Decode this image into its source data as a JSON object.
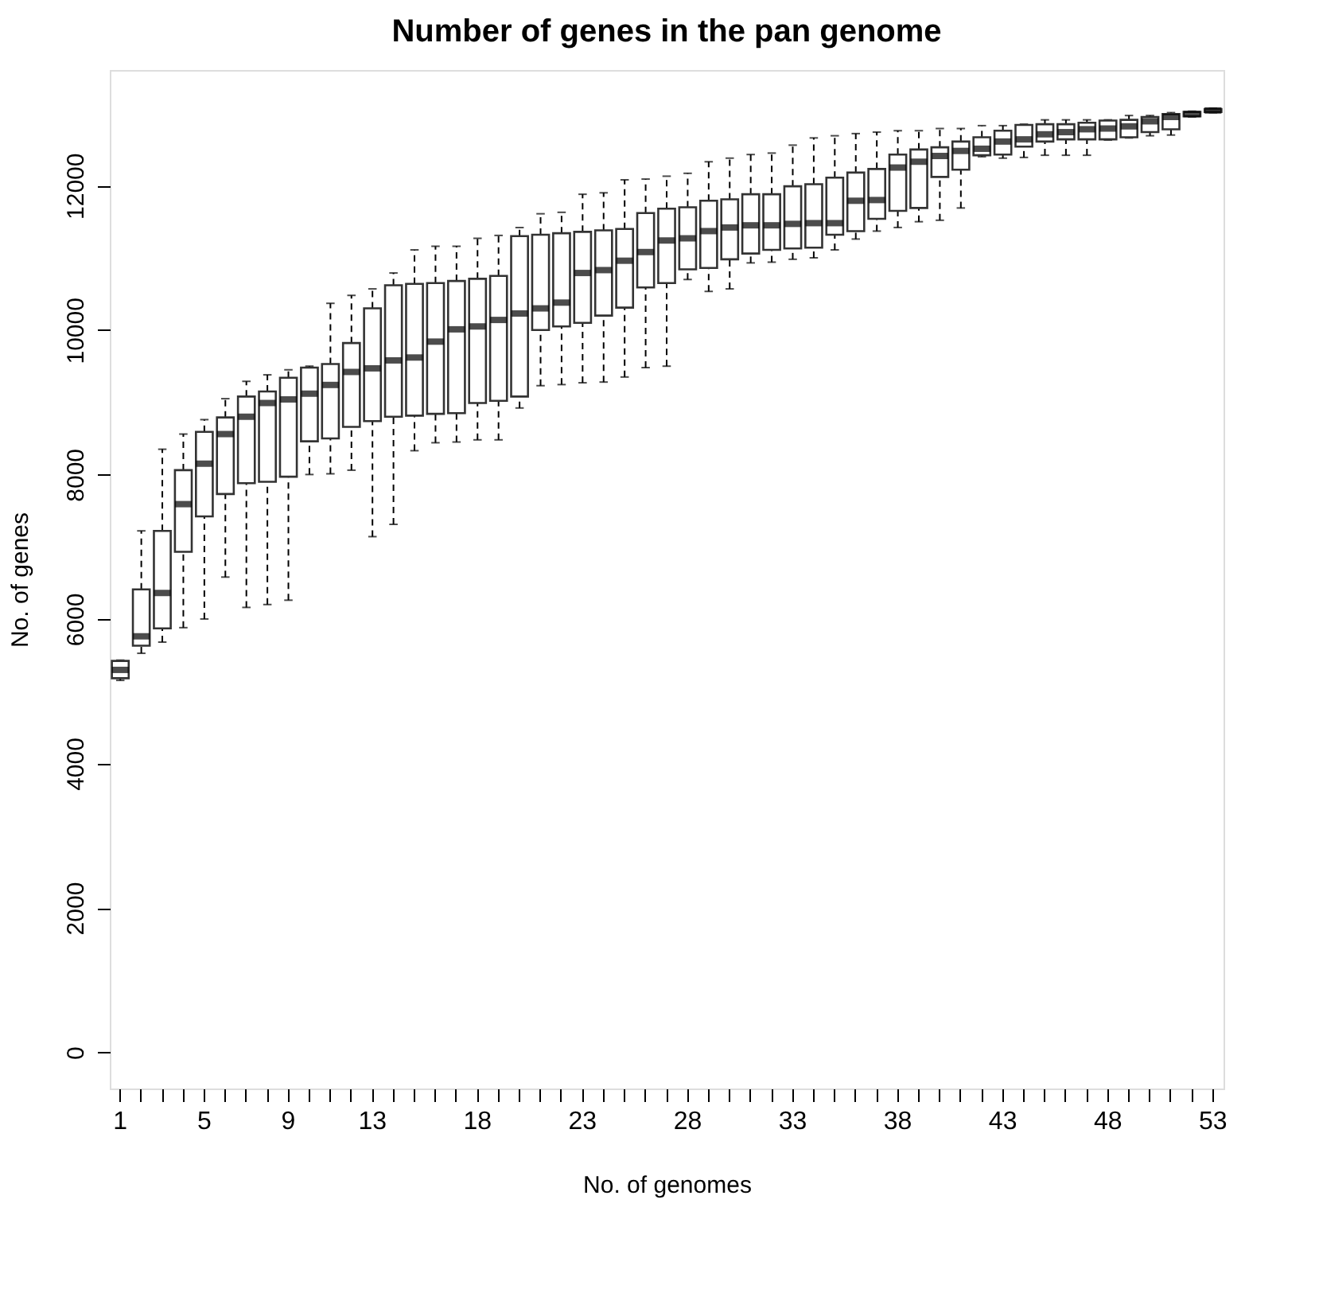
{
  "chart_data": {
    "type": "box",
    "title": "Number of genes in the pan genome",
    "xlabel": "No. of genomes",
    "ylabel": "No. of genes",
    "categories": [
      "1",
      null,
      null,
      null,
      "5",
      null,
      null,
      null,
      "9",
      null,
      null,
      null,
      "13",
      null,
      null,
      null,
      null,
      "18",
      null,
      null,
      null,
      null,
      "23",
      null,
      null,
      null,
      null,
      "28",
      null,
      null,
      null,
      null,
      "33",
      null,
      null,
      null,
      null,
      "38",
      null,
      null,
      null,
      null,
      "43",
      null,
      null,
      null,
      null,
      "48",
      null,
      null,
      null,
      null,
      "53"
    ],
    "boxes": [
      {
        "low": 5150,
        "q1": 5180,
        "median": 5295,
        "q3": 5420,
        "high": 5430
      },
      {
        "low": 5525,
        "q1": 5630,
        "median": 5760,
        "q3": 6410,
        "high": 7220
      },
      {
        "low": 5680,
        "q1": 5870,
        "median": 6360,
        "q3": 7220,
        "high": 8350
      },
      {
        "low": 5880,
        "q1": 6930,
        "median": 7590,
        "q3": 8060,
        "high": 8560
      },
      {
        "low": 6000,
        "q1": 7420,
        "median": 8150,
        "q3": 8590,
        "high": 8760
      },
      {
        "low": 6580,
        "q1": 7730,
        "median": 8560,
        "q3": 8790,
        "high": 9050
      },
      {
        "low": 6160,
        "q1": 7880,
        "median": 8800,
        "q3": 9080,
        "high": 9290
      },
      {
        "low": 6200,
        "q1": 7900,
        "median": 8990,
        "q3": 9150,
        "high": 9380
      },
      {
        "low": 6260,
        "q1": 7970,
        "median": 9040,
        "q3": 9340,
        "high": 9450
      },
      {
        "low": 8000,
        "q1": 8460,
        "median": 9120,
        "q3": 9480,
        "high": 9500
      },
      {
        "low": 8010,
        "q1": 8500,
        "median": 9240,
        "q3": 9530,
        "high": 10370
      },
      {
        "low": 8060,
        "q1": 8660,
        "median": 9420,
        "q3": 9820,
        "high": 10480
      },
      {
        "low": 7140,
        "q1": 8740,
        "median": 9470,
        "q3": 10300,
        "high": 10570
      },
      {
        "low": 7310,
        "q1": 8800,
        "median": 9580,
        "q3": 10620,
        "high": 10790
      },
      {
        "low": 8330,
        "q1": 8815,
        "median": 9620,
        "q3": 10640,
        "high": 11110
      },
      {
        "low": 8440,
        "q1": 8840,
        "median": 9840,
        "q3": 10650,
        "high": 11160
      },
      {
        "low": 8450,
        "q1": 8850,
        "median": 10010,
        "q3": 10680,
        "high": 11160
      },
      {
        "low": 8480,
        "q1": 8990,
        "median": 10050,
        "q3": 10710,
        "high": 11270
      },
      {
        "low": 8480,
        "q1": 9020,
        "median": 10140,
        "q3": 10750,
        "high": 11310
      },
      {
        "low": 8920,
        "q1": 9080,
        "median": 10230,
        "q3": 11300,
        "high": 11420
      },
      {
        "low": 9230,
        "q1": 10000,
        "median": 10300,
        "q3": 11320,
        "high": 11610
      },
      {
        "low": 9245,
        "q1": 10050,
        "median": 10380,
        "q3": 11340,
        "high": 11630
      },
      {
        "low": 9270,
        "q1": 10100,
        "median": 10790,
        "q3": 11360,
        "high": 11880
      },
      {
        "low": 9280,
        "q1": 10200,
        "median": 10830,
        "q3": 11380,
        "high": 11900
      },
      {
        "low": 9350,
        "q1": 10310,
        "median": 10960,
        "q3": 11400,
        "high": 12080
      },
      {
        "low": 9480,
        "q1": 10590,
        "median": 11080,
        "q3": 11620,
        "high": 12090
      },
      {
        "low": 9500,
        "q1": 10650,
        "median": 11240,
        "q3": 11680,
        "high": 12130
      },
      {
        "low": 10700,
        "q1": 10840,
        "median": 11270,
        "q3": 11700,
        "high": 12170
      },
      {
        "low": 10535,
        "q1": 10860,
        "median": 11370,
        "q3": 11790,
        "high": 12330
      },
      {
        "low": 10570,
        "q1": 10980,
        "median": 11420,
        "q3": 11810,
        "high": 12380
      },
      {
        "low": 10930,
        "q1": 11060,
        "median": 11450,
        "q3": 11880,
        "high": 12430
      },
      {
        "low": 10940,
        "q1": 11110,
        "median": 11450,
        "q3": 11880,
        "high": 12450
      },
      {
        "low": 10980,
        "q1": 11130,
        "median": 11470,
        "q3": 11990,
        "high": 12560
      },
      {
        "low": 11000,
        "q1": 11140,
        "median": 11480,
        "q3": 12020,
        "high": 12660
      },
      {
        "low": 11110,
        "q1": 11320,
        "median": 11480,
        "q3": 12110,
        "high": 12690
      },
      {
        "low": 11260,
        "q1": 11370,
        "median": 11790,
        "q3": 12180,
        "high": 12720
      },
      {
        "low": 11370,
        "q1": 11540,
        "median": 11800,
        "q3": 12230,
        "high": 12740
      },
      {
        "low": 11420,
        "q1": 11650,
        "median": 12250,
        "q3": 12430,
        "high": 12760
      },
      {
        "low": 11500,
        "q1": 11690,
        "median": 12330,
        "q3": 12500,
        "high": 12760
      },
      {
        "low": 11520,
        "q1": 12120,
        "median": 12410,
        "q3": 12530,
        "high": 12790
      },
      {
        "low": 11690,
        "q1": 12220,
        "median": 12480,
        "q3": 12610,
        "high": 12790
      },
      {
        "low": 12400,
        "q1": 12420,
        "median": 12510,
        "q3": 12670,
        "high": 12830
      },
      {
        "low": 12380,
        "q1": 12430,
        "median": 12610,
        "q3": 12760,
        "high": 12830
      },
      {
        "low": 12390,
        "q1": 12540,
        "median": 12640,
        "q3": 12840,
        "high": 12850
      },
      {
        "low": 12420,
        "q1": 12610,
        "median": 12710,
        "q3": 12850,
        "high": 12910
      },
      {
        "low": 12420,
        "q1": 12640,
        "median": 12740,
        "q3": 12850,
        "high": 12910
      },
      {
        "low": 12420,
        "q1": 12640,
        "median": 12780,
        "q3": 12870,
        "high": 12910
      },
      {
        "low": 12630,
        "q1": 12640,
        "median": 12790,
        "q3": 12900,
        "high": 12910
      },
      {
        "low": 12660,
        "q1": 12670,
        "median": 12820,
        "q3": 12910,
        "high": 12970
      },
      {
        "low": 12690,
        "q1": 12740,
        "median": 12890,
        "q3": 12950,
        "high": 12970
      },
      {
        "low": 12700,
        "q1": 12780,
        "median": 12950,
        "q3": 12990,
        "high": 13010
      },
      {
        "low": 12950,
        "q1": 12960,
        "median": 12990,
        "q3": 13020,
        "high": 13030
      },
      {
        "low": 13010,
        "q1": 13020,
        "median": 13040,
        "q3": 13060,
        "high": 13070
      }
    ],
    "ylim": [
      -500,
      13600
    ],
    "yticks": [
      0,
      2000,
      4000,
      6000,
      8000,
      10000,
      12000
    ],
    "line_style": "dashed",
    "grid": false
  }
}
